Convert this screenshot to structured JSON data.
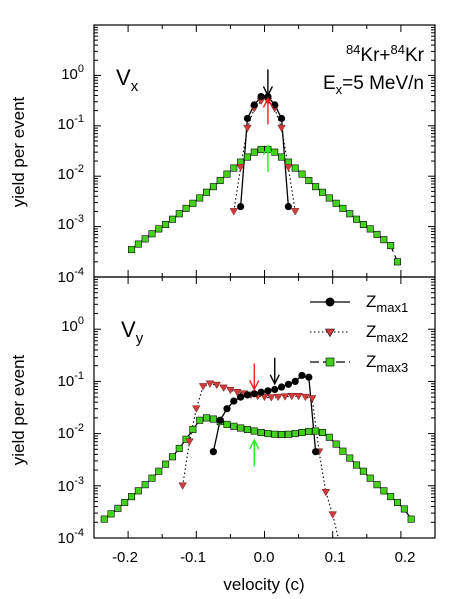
{
  "reaction": {
    "mass1": "84",
    "sym1": "Kr+",
    "mass2": "84",
    "sym2": "Kr",
    "ex_main": "E",
    "ex_sub": "x",
    "ex_rest": "=5 MeV/n"
  },
  "xlabel": "velocity (c)",
  "x_ticks": [
    "-0.2",
    "-0.1",
    "0.0",
    "0.1",
    "0.2"
  ],
  "y_ticks": [
    {
      "base": "10",
      "exp": "0"
    },
    {
      "base": "10",
      "exp": "-1"
    },
    {
      "base": "10",
      "exp": "-2"
    },
    {
      "base": "10",
      "exp": "-3"
    },
    {
      "base": "10",
      "exp": "-4"
    }
  ],
  "legend": [
    {
      "main": "Z",
      "sub": "max1"
    },
    {
      "main": "Z",
      "sub": "max2"
    },
    {
      "main": "Z",
      "sub": "max3"
    }
  ],
  "colors": {
    "zmax1": "#000000",
    "zmax2": "#d23c3c",
    "zmax3": "#44d11e",
    "arrow_black": "#000000",
    "arrow_red": "#ff2020",
    "arrow_green": "#22ee22"
  },
  "chart_data": [
    {
      "type": "scatter",
      "panel_label": {
        "main": "V",
        "sub": "x"
      },
      "ylabel": "yield per event",
      "xlim": [
        -0.25,
        0.25
      ],
      "ylim": [
        0.0001,
        10
      ],
      "yscale": "log",
      "series": [
        {
          "name": "Z max1",
          "x": [
            -0.035,
            -0.025,
            -0.015,
            -0.005,
            0.005,
            0.015,
            0.025,
            0.035
          ],
          "y": [
            0.0025,
            0.14,
            0.26,
            0.38,
            0.38,
            0.26,
            0.14,
            0.0025
          ]
        },
        {
          "name": "Z max2",
          "x": [
            -0.045,
            -0.035,
            -0.025,
            -0.015,
            -0.005,
            0.005,
            0.015,
            0.025,
            0.035,
            0.045
          ],
          "y": [
            0.002,
            0.015,
            0.09,
            0.22,
            0.31,
            0.31,
            0.22,
            0.09,
            0.015,
            0.002
          ]
        },
        {
          "name": "Z max3",
          "x": [
            -0.195,
            -0.185,
            -0.175,
            -0.165,
            -0.155,
            -0.145,
            -0.135,
            -0.125,
            -0.115,
            -0.105,
            -0.095,
            -0.085,
            -0.075,
            -0.065,
            -0.055,
            -0.045,
            -0.035,
            -0.025,
            -0.015,
            -0.005,
            0.005,
            0.015,
            0.025,
            0.035,
            0.045,
            0.055,
            0.065,
            0.075,
            0.085,
            0.095,
            0.105,
            0.115,
            0.125,
            0.135,
            0.145,
            0.155,
            0.165,
            0.175,
            0.185,
            0.195
          ],
          "y": [
            0.00035,
            0.00045,
            0.00057,
            0.00072,
            0.0009,
            0.0011,
            0.0014,
            0.0018,
            0.0023,
            0.0029,
            0.0037,
            0.0048,
            0.0062,
            0.0082,
            0.011,
            0.0145,
            0.019,
            0.024,
            0.03,
            0.034,
            0.034,
            0.03,
            0.024,
            0.019,
            0.0145,
            0.011,
            0.0082,
            0.0062,
            0.0048,
            0.0037,
            0.0029,
            0.0023,
            0.0018,
            0.0014,
            0.0011,
            0.0009,
            0.0007,
            0.00055,
            0.00042,
            0.0002
          ]
        }
      ],
      "arrows": [
        {
          "color": "black",
          "x": 0.005,
          "y_tip": 0.4,
          "direction": "down"
        },
        {
          "color": "red",
          "x": 0.005,
          "y_tip": 0.35,
          "direction": "up"
        },
        {
          "color": "green",
          "x": 0.005,
          "y_tip": 0.04,
          "direction": "up"
        }
      ]
    },
    {
      "type": "scatter",
      "panel_label": {
        "main": "V",
        "sub": "y"
      },
      "ylabel": "yield per event",
      "xlim": [
        -0.25,
        0.25
      ],
      "ylim": [
        0.0001,
        10
      ],
      "yscale": "log",
      "series": [
        {
          "name": "Z max1",
          "x": [
            -0.075,
            -0.065,
            -0.055,
            -0.045,
            -0.035,
            -0.025,
            -0.015,
            -0.005,
            0.005,
            0.015,
            0.025,
            0.035,
            0.045,
            0.055,
            0.065,
            0.075
          ],
          "y": [
            0.0045,
            0.018,
            0.03,
            0.042,
            0.05,
            0.055,
            0.058,
            0.062,
            0.066,
            0.07,
            0.078,
            0.088,
            0.1,
            0.13,
            0.12,
            0.0045
          ]
        },
        {
          "name": "Z max2",
          "x": [
            -0.12,
            -0.11,
            -0.1,
            -0.09,
            -0.08,
            -0.07,
            -0.06,
            -0.05,
            -0.04,
            -0.03,
            -0.02,
            -0.01,
            0.0,
            0.01,
            0.02,
            0.03,
            0.04,
            0.05,
            0.06,
            0.07,
            0.08,
            0.09,
            0.1,
            0.11
          ],
          "y": [
            0.001,
            0.007,
            0.03,
            0.08,
            0.09,
            0.085,
            0.075,
            0.068,
            0.062,
            0.058,
            0.055,
            0.052,
            0.05,
            0.049,
            0.05,
            0.051,
            0.052,
            0.052,
            0.05,
            0.047,
            0.0045,
            0.00075,
            0.00028,
            8e-05
          ]
        },
        {
          "name": "Z max3",
          "x": [
            -0.235,
            -0.225,
            -0.215,
            -0.205,
            -0.195,
            -0.185,
            -0.175,
            -0.165,
            -0.155,
            -0.145,
            -0.135,
            -0.125,
            -0.115,
            -0.105,
            -0.095,
            -0.085,
            -0.075,
            -0.065,
            -0.055,
            -0.045,
            -0.035,
            -0.025,
            -0.015,
            -0.005,
            0.005,
            0.015,
            0.025,
            0.035,
            0.045,
            0.055,
            0.065,
            0.075,
            0.085,
            0.095,
            0.105,
            0.115,
            0.125,
            0.135,
            0.145,
            0.155,
            0.165,
            0.175,
            0.185,
            0.195,
            0.205,
            0.215
          ],
          "y": [
            0.00023,
            0.00029,
            0.00037,
            0.00048,
            0.00062,
            0.0008,
            0.00105,
            0.0014,
            0.0019,
            0.0026,
            0.0036,
            0.0052,
            0.0078,
            0.012,
            0.018,
            0.02,
            0.019,
            0.017,
            0.015,
            0.0138,
            0.0128,
            0.012,
            0.0112,
            0.0105,
            0.01,
            0.0097,
            0.0096,
            0.0097,
            0.01,
            0.0105,
            0.011,
            0.0112,
            0.0105,
            0.0085,
            0.0063,
            0.0046,
            0.0034,
            0.0025,
            0.0019,
            0.0014,
            0.00105,
            0.0008,
            0.00062,
            0.00048,
            0.00036,
            0.00023
          ]
        }
      ],
      "arrows": [
        {
          "color": "black",
          "x": 0.015,
          "y_tip": 0.09,
          "direction": "down"
        },
        {
          "color": "red",
          "x": -0.015,
          "y_tip": 0.07,
          "direction": "down"
        },
        {
          "color": "green",
          "x": -0.015,
          "y_tip": 0.0075,
          "direction": "up"
        }
      ]
    }
  ]
}
